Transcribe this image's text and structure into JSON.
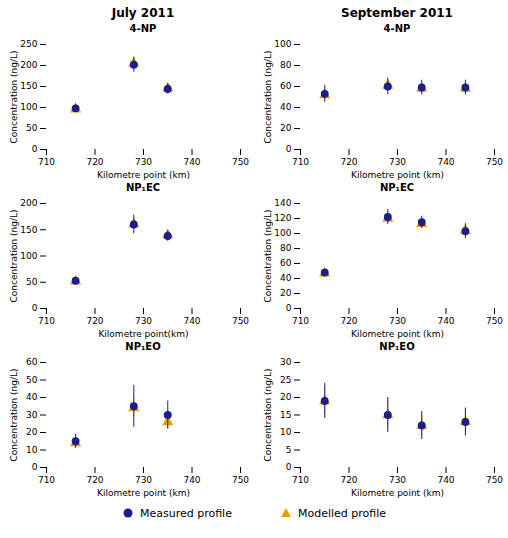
{
  "chart_data": [
    {
      "type": "scatter",
      "title": "4-NP",
      "annotations": [
        "July 2011"
      ],
      "xlabel": "Kilometre point (km)",
      "ylabel": "Concentration (ng/L)",
      "x": [
        716,
        728,
        735
      ],
      "xlim": [
        710,
        750
      ],
      "xticks": [
        710,
        720,
        730,
        740,
        750
      ],
      "ylim": [
        0,
        250
      ],
      "yticks": [
        0,
        50,
        100,
        150,
        200,
        250
      ],
      "legend": "bottom",
      "series": [
        {
          "name": "Measured profile",
          "color": "#1a1f8c",
          "marker": "circle",
          "values": [
            98,
            202,
            144
          ],
          "yerr": [
            10,
            18,
            12
          ]
        },
        {
          "name": "Modelled profile",
          "color": "#E8A000",
          "marker": "triangle",
          "values": [
            96,
            205,
            146
          ],
          "yerr": [
            5,
            5,
            5
          ]
        }
      ]
    },
    {
      "type": "scatter",
      "title": "4-NP",
      "annotations": [
        "September 2011"
      ],
      "xlabel": "Kilometre point (km)",
      "ylabel": "Concentration (ng/L)",
      "x": [
        715,
        728,
        735,
        744
      ],
      "xlim": [
        710,
        750
      ],
      "xticks": [
        710,
        720,
        730,
        740,
        750
      ],
      "ylim": [
        0,
        100
      ],
      "yticks": [
        0,
        20,
        40,
        60,
        80,
        100
      ],
      "series": [
        {
          "name": "Measured profile",
          "color": "#1a1f8c",
          "marker": "circle",
          "values": [
            53,
            60,
            59,
            59
          ],
          "yerr": [
            8,
            8,
            7,
            7
          ]
        },
        {
          "name": "Modelled profile",
          "color": "#E8A000",
          "marker": "triangle",
          "values": [
            52,
            61,
            58,
            58
          ],
          "yerr": [
            5,
            5,
            5,
            5
          ]
        }
      ]
    },
    {
      "type": "scatter",
      "title": "NP₁EC",
      "xlabel": "Kilometre point(km)",
      "ylabel": "Concentration (ng/L)",
      "x": [
        716,
        728,
        735
      ],
      "xlim": [
        710,
        750
      ],
      "xticks": [
        710,
        720,
        730,
        740,
        750
      ],
      "ylim": [
        0,
        200
      ],
      "yticks": [
        0,
        50,
        100,
        150,
        200
      ],
      "series": [
        {
          "name": "Measured profile",
          "color": "#1a1f8c",
          "marker": "circle",
          "values": [
            53,
            160,
            138
          ],
          "yerr": [
            5,
            18,
            10
          ]
        },
        {
          "name": "Modelled profile",
          "color": "#E8A000",
          "marker": "triangle",
          "values": [
            52,
            161,
            140
          ],
          "yerr": [
            4,
            5,
            5
          ]
        }
      ]
    },
    {
      "type": "scatter",
      "title": "NP₁EC",
      "xlabel": "Kilometre point (km)",
      "ylabel": "Concentration (ng/L)",
      "x": [
        715,
        728,
        735,
        744
      ],
      "xlim": [
        710,
        750
      ],
      "xticks": [
        710,
        720,
        730,
        740,
        750
      ],
      "ylim": [
        0,
        140
      ],
      "yticks": [
        0,
        20,
        40,
        60,
        80,
        100,
        120,
        140
      ],
      "series": [
        {
          "name": "Measured profile",
          "color": "#1a1f8c",
          "marker": "circle",
          "values": [
            48,
            122,
            115,
            103
          ],
          "yerr": [
            4,
            10,
            8,
            10
          ]
        },
        {
          "name": "Modelled profile",
          "color": "#E8A000",
          "marker": "triangle",
          "values": [
            47,
            120,
            113,
            104
          ],
          "yerr": [
            3,
            6,
            6,
            6
          ]
        }
      ]
    },
    {
      "type": "scatter",
      "title": "NP₁EO",
      "xlabel": "Kilometre point (km)",
      "ylabel": "Concentration (ng/L)",
      "x": [
        716,
        728,
        735
      ],
      "xlim": [
        710,
        750
      ],
      "xticks": [
        710,
        720,
        730,
        740,
        750
      ],
      "ylim": [
        0,
        60
      ],
      "yticks": [
        0,
        10,
        20,
        30,
        40,
        50,
        60
      ],
      "series": [
        {
          "name": "Measured profile",
          "color": "#1a1f8c",
          "marker": "circle",
          "values": [
            15,
            35,
            30
          ],
          "yerr": [
            4,
            12,
            8
          ]
        },
        {
          "name": "Modelled profile",
          "color": "#E8A000",
          "marker": "triangle",
          "values": [
            14,
            34,
            26
          ],
          "yerr": [
            3,
            5,
            4
          ]
        }
      ]
    },
    {
      "type": "scatter",
      "title": "NP₁EO",
      "xlabel": "Kilometre point (km)",
      "ylabel": "Concentration (ng/L)",
      "x": [
        715,
        728,
        735,
        744
      ],
      "xlim": [
        710,
        750
      ],
      "xticks": [
        710,
        720,
        730,
        740,
        750
      ],
      "ylim": [
        0,
        30
      ],
      "yticks": [
        0,
        5,
        10,
        15,
        20,
        25,
        30
      ],
      "series": [
        {
          "name": "Measured profile",
          "color": "#1a1f8c",
          "marker": "circle",
          "values": [
            19,
            15,
            12,
            13
          ],
          "yerr": [
            5,
            5,
            4,
            4
          ]
        },
        {
          "name": "Modelled profile",
          "color": "#E8A000",
          "marker": "triangle",
          "values": [
            19,
            15,
            12,
            13
          ],
          "yerr": [
            4,
            4,
            3,
            3
          ]
        }
      ]
    }
  ]
}
